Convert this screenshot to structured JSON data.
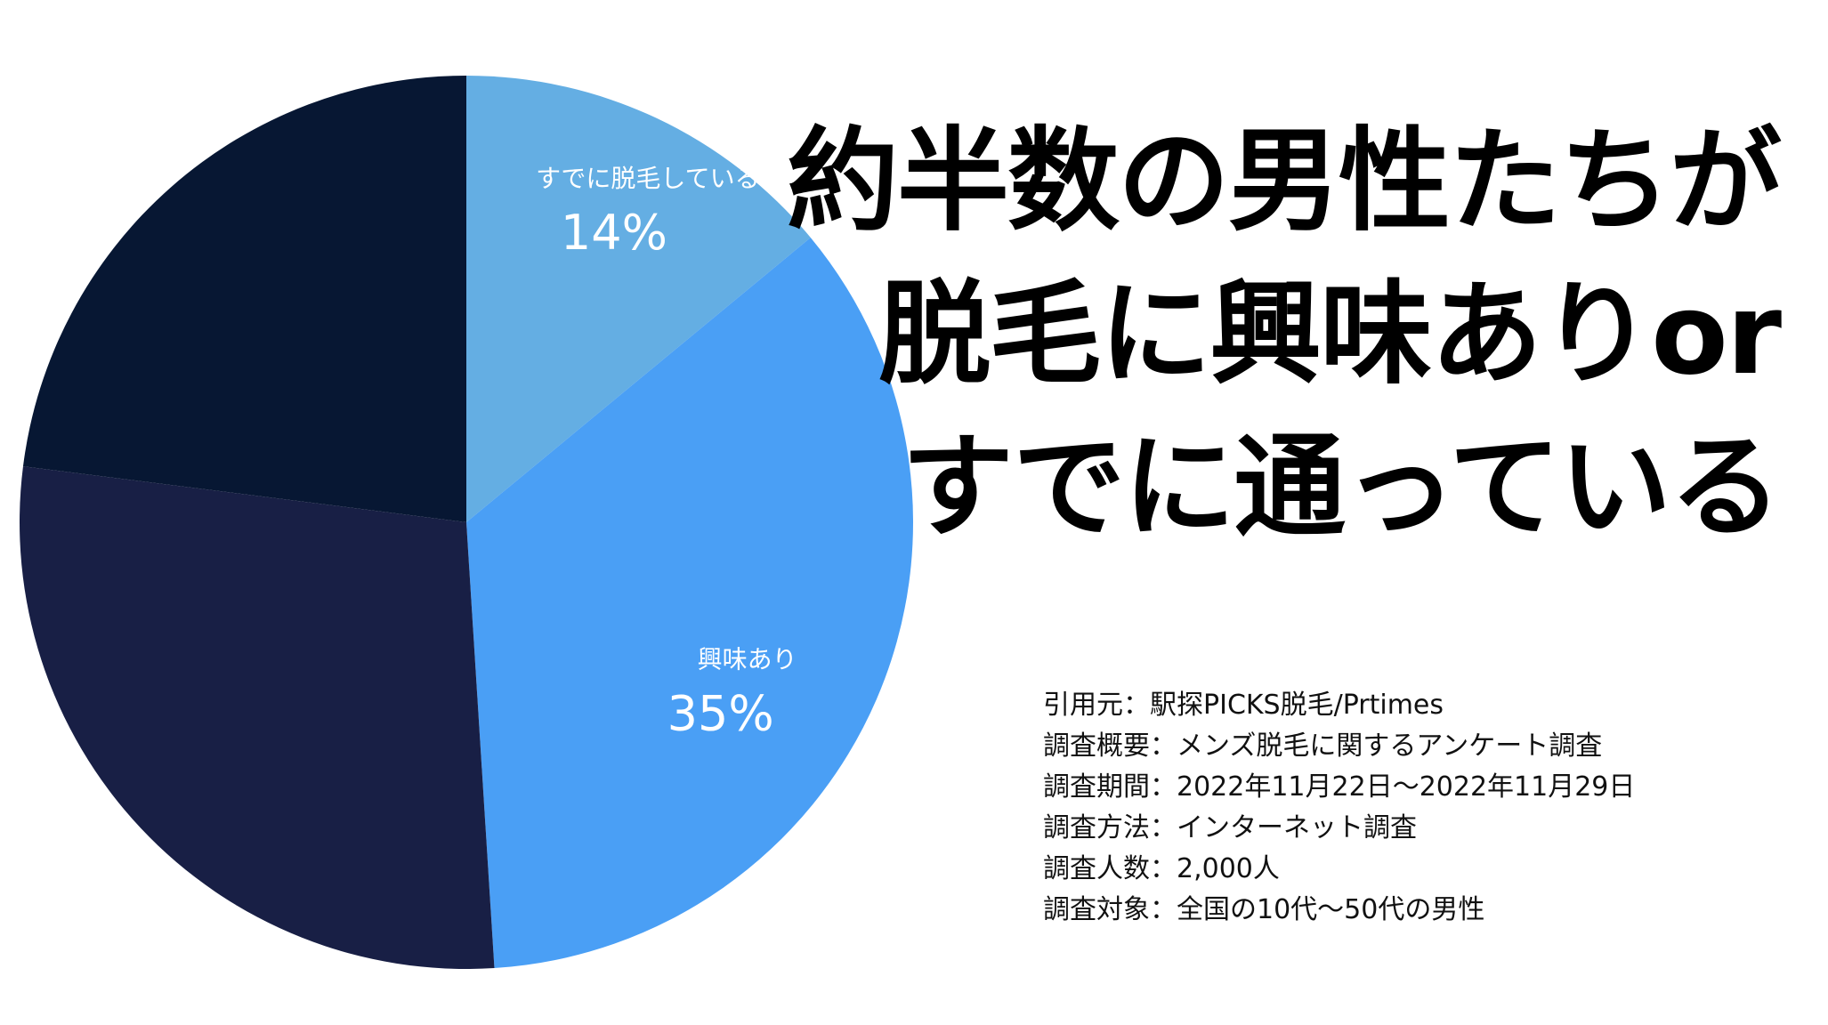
{
  "chart_data": {
    "type": "pie",
    "title": "約半数の男性たちが脱毛に興味ありorすでに通っている",
    "start": "top",
    "direction": "clockwise",
    "slices": [
      {
        "label": "すでに脱毛している",
        "value": 14,
        "value_label": "14%",
        "color": "#64aee3",
        "show_label": true
      },
      {
        "label": "興味あり",
        "value": 35,
        "value_label": "35%",
        "color": "#4a9ff5",
        "show_label": true
      },
      {
        "label": "",
        "value": 28,
        "value_label": "",
        "color": "#181f45",
        "show_label": false
      },
      {
        "label": "",
        "value": 23,
        "value_label": "",
        "color": "#071733",
        "show_label": false
      }
    ]
  },
  "headline": [
    "約半数の男性たちが",
    "脱毛に興味ありor",
    "すでに通っている"
  ],
  "notes": [
    "引用元：駅探PICKS脱毛/Prtimes",
    "調査概要：メンズ脱毛に関するアンケート調査",
    "調査期間：2022年11月22日〜2022年11月29日",
    "調査方法：インターネット調査",
    "調査人数：2,000人",
    "調査対象：全国の10代〜50代の男性"
  ]
}
